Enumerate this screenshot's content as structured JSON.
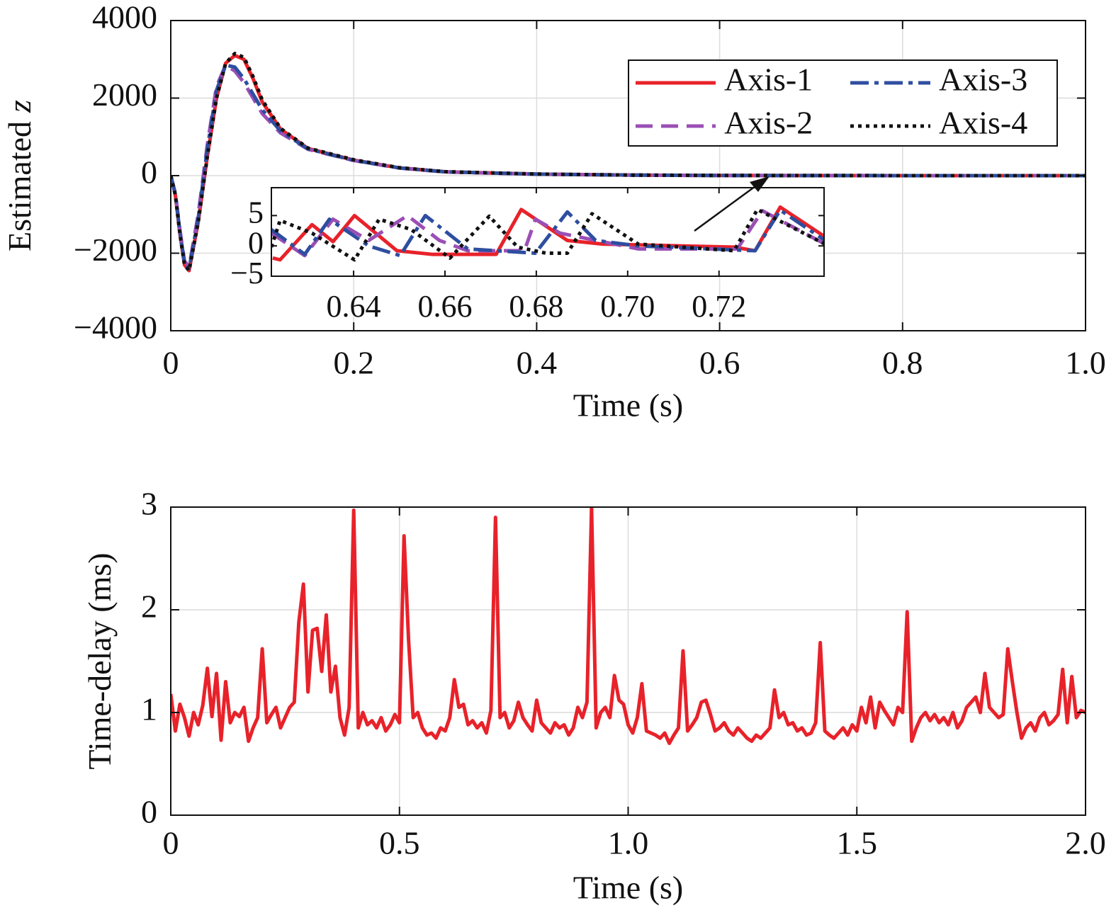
{
  "chart_data": [
    {
      "type": "line",
      "grid": true,
      "legend": "upper right",
      "legend_columns": 2,
      "ylabel": "Estimated",
      "ylabel_symbol": "z",
      "xlabel": "Time (s)",
      "xlim": [
        0,
        1
      ],
      "xticks": [
        0,
        0.2,
        0.4,
        0.6,
        0.8,
        {
          "value": 1,
          "label": "1.0"
        }
      ],
      "ylim": [
        -4000,
        4000
      ],
      "yticks": [
        {
          "value": -4000,
          "label": "−4000"
        },
        {
          "value": -2000,
          "label": "−2000"
        },
        0,
        2000,
        4000
      ],
      "x": [
        0,
        0.005,
        0.01,
        0.015,
        0.02,
        0.03,
        0.04,
        0.05,
        0.06,
        0.07,
        0.08,
        0.09,
        0.1,
        0.12,
        0.15,
        0.2,
        0.25,
        0.3,
        0.4,
        0.5,
        0.6,
        0.7,
        0.8,
        0.9,
        1.0
      ],
      "series": [
        {
          "name": "Axis-1",
          "color": "#e8222a",
          "dash": "solid",
          "values": [
            0,
            -500,
            -1500,
            -2300,
            -2450,
            -1200,
            500,
            2000,
            2900,
            3100,
            3000,
            2500,
            1900,
            1200,
            700,
            400,
            200,
            100,
            40,
            15,
            5,
            2,
            1,
            0.5,
            0.2
          ]
        },
        {
          "name": "Axis-2",
          "color": "#9b4fb5",
          "dash": "dashed",
          "values": [
            0,
            -450,
            -1400,
            -2200,
            -2350,
            -1000,
            800,
            2300,
            2850,
            2700,
            2400,
            2000,
            1600,
            1100,
            680,
            390,
            195,
            95,
            38,
            14,
            5,
            2,
            1,
            0.5,
            0.2
          ]
        },
        {
          "name": "Axis-3",
          "color": "#2e4ea0",
          "dash": "dashdot",
          "values": [
            0,
            -480,
            -1450,
            -2250,
            -2400,
            -1100,
            700,
            2200,
            2850,
            2800,
            2500,
            2100,
            1700,
            1150,
            690,
            395,
            198,
            98,
            39,
            15,
            5,
            2,
            1,
            0.5,
            0.2
          ]
        },
        {
          "name": "Axis-4",
          "color": "#111111",
          "dash": "dotted",
          "values": [
            0,
            -500,
            -1500,
            -2300,
            -2450,
            -1200,
            500,
            2000,
            2900,
            3150,
            3050,
            2550,
            1950,
            1220,
            710,
            410,
            205,
            102,
            41,
            15,
            5,
            2,
            1,
            0.5,
            0.2
          ]
        }
      ]
    },
    {
      "type": "line",
      "grid": false,
      "xlim": [
        0.622,
        0.743
      ],
      "xticks": [
        0.64,
        0.66,
        0.68,
        {
          "value": 0.7,
          "label": "0.70"
        },
        0.72
      ],
      "ylim": [
        -5,
        9.6
      ],
      "yticks": [
        {
          "value": -5,
          "label": "−5"
        },
        0,
        5
      ],
      "series": [
        {
          "color": "#e8222a",
          "dash": "solid",
          "x": [
            0.6223,
            0.6239,
            0.6309,
            0.6355,
            0.6402,
            0.6495,
            0.6573,
            0.6712,
            0.6767,
            0.6868,
            0.6945,
            0.7233,
            0.7279,
            0.7334,
            0.7432
          ],
          "values": [
            -2.0,
            -2.3,
            3.5,
            0.7,
            5.0,
            -0.8,
            -1.4,
            -1.4,
            6.0,
            0.9,
            0.3,
            -0.2,
            -0.8,
            6.4,
            1.5
          ]
        },
        {
          "color": "#9b4fb5",
          "dash": "dashed",
          "x": [
            0.622,
            0.6293,
            0.6355,
            0.6433,
            0.6518,
            0.6588,
            0.665,
            0.6774,
            0.6798,
            0.6852,
            0.7023,
            0.724,
            0.7295,
            0.7432
          ],
          "values": [
            2.1,
            -1.6,
            4.4,
            0.9,
            5.0,
            0.9,
            -0.8,
            -0.8,
            4.4,
            2.1,
            -0.5,
            -0.5,
            5.8,
            0.3
          ]
        },
        {
          "color": "#2e4ea0",
          "dash": "dashdot",
          "x": [
            0.622,
            0.6293,
            0.6347,
            0.6433,
            0.6502,
            0.6557,
            0.665,
            0.6798,
            0.6868,
            0.693,
            0.7023,
            0.7279,
            0.7334,
            0.7432
          ],
          "values": [
            2.7,
            -1.4,
            4.4,
            0,
            -1.6,
            5.0,
            -0.5,
            -1.2,
            5.6,
            0.9,
            0,
            -0.8,
            5.9,
            0.9
          ]
        },
        {
          "color": "#111111",
          "dash": "dotted",
          "x": [
            0.622,
            0.6239,
            0.6309,
            0.6402,
            0.6456,
            0.6526,
            0.6611,
            0.6697,
            0.6759,
            0.6821,
            0.6868,
            0.6922,
            0.7023,
            0.7233,
            0.7284,
            0.7432
          ],
          "values": [
            -0.2,
            4.2,
            2.1,
            -2.3,
            4.4,
            2.7,
            -2.0,
            4.9,
            -0.2,
            -1.2,
            -1.2,
            5.3,
            0.3,
            -0.8,
            6.0,
            0.3
          ]
        }
      ]
    },
    {
      "type": "line",
      "grid": true,
      "ylabel": "Time-delay (ms)",
      "xlabel": "Time (s)",
      "xlim": [
        0,
        2
      ],
      "xticks": [
        0,
        0.5,
        {
          "value": 1,
          "label": "1.0"
        },
        1.5,
        {
          "value": 2,
          "label": "2.0"
        }
      ],
      "ylim": [
        0,
        3
      ],
      "yticks": [
        0,
        1,
        2,
        3
      ],
      "x": [
        0,
        0.01,
        0.02,
        0.03,
        0.04,
        0.05,
        0.06,
        0.07,
        0.08,
        0.09,
        0.1,
        0.11,
        0.12,
        0.13,
        0.14,
        0.15,
        0.16,
        0.17,
        0.18,
        0.19,
        0.2,
        0.21,
        0.22,
        0.23,
        0.24,
        0.25,
        0.26,
        0.27,
        0.28,
        0.29,
        0.3,
        0.31,
        0.32,
        0.33,
        0.34,
        0.35,
        0.36,
        0.37,
        0.38,
        0.39,
        0.4,
        0.41,
        0.42,
        0.43,
        0.44,
        0.45,
        0.46,
        0.47,
        0.48,
        0.49,
        0.5,
        0.51,
        0.52,
        0.53,
        0.54,
        0.55,
        0.56,
        0.57,
        0.58,
        0.59,
        0.6,
        0.61,
        0.62,
        0.63,
        0.64,
        0.65,
        0.66,
        0.67,
        0.68,
        0.69,
        0.7,
        0.71,
        0.72,
        0.73,
        0.74,
        0.75,
        0.76,
        0.77,
        0.78,
        0.79,
        0.8,
        0.81,
        0.82,
        0.83,
        0.84,
        0.85,
        0.86,
        0.87,
        0.88,
        0.89,
        0.9,
        0.91,
        0.92,
        0.93,
        0.94,
        0.95,
        0.96,
        0.97,
        0.98,
        0.99,
        1,
        1.01,
        1.02,
        1.03,
        1.04,
        1.05,
        1.06,
        1.07,
        1.08,
        1.09,
        1.1,
        1.11,
        1.12,
        1.13,
        1.14,
        1.15,
        1.16,
        1.17,
        1.18,
        1.19,
        1.2,
        1.21,
        1.22,
        1.23,
        1.24,
        1.25,
        1.26,
        1.27,
        1.28,
        1.29,
        1.3,
        1.31,
        1.32,
        1.33,
        1.34,
        1.35,
        1.36,
        1.37,
        1.38,
        1.39,
        1.4,
        1.41,
        1.42,
        1.43,
        1.44,
        1.45,
        1.46,
        1.47,
        1.48,
        1.49,
        1.5,
        1.51,
        1.52,
        1.53,
        1.54,
        1.55,
        1.56,
        1.57,
        1.58,
        1.59,
        1.6,
        1.61,
        1.62,
        1.63,
        1.64,
        1.65,
        1.66,
        1.67,
        1.68,
        1.69,
        1.7,
        1.71,
        1.72,
        1.73,
        1.74,
        1.75,
        1.76,
        1.77,
        1.78,
        1.79,
        1.8,
        1.81,
        1.82,
        1.83,
        1.84,
        1.85,
        1.86,
        1.87,
        1.88,
        1.89,
        1.9,
        1.91,
        1.92,
        1.93,
        1.94,
        1.95,
        1.96,
        1.97,
        1.98,
        1.99,
        2
      ],
      "series": [
        {
          "color": "#e8222a",
          "dash": "solid",
          "values": [
            1.18,
            0.82,
            1.08,
            0.95,
            0.77,
            1.0,
            0.88,
            1.07,
            1.43,
            0.96,
            1.38,
            0.73,
            1.3,
            0.9,
            1.0,
            0.96,
            1.05,
            0.72,
            0.85,
            0.95,
            1.62,
            0.9,
            0.98,
            1.05,
            0.85,
            0.95,
            1.05,
            1.1,
            1.88,
            2.25,
            1.2,
            1.8,
            1.82,
            1.4,
            1.95,
            1.2,
            1.45,
            0.95,
            0.78,
            1.05,
            2.97,
            0.85,
            1.0,
            0.88,
            0.92,
            0.85,
            0.95,
            0.82,
            0.88,
            0.98,
            0.9,
            2.72,
            1.7,
            0.95,
            1.0,
            0.85,
            0.78,
            0.8,
            0.75,
            0.85,
            0.82,
            0.95,
            1.32,
            1.05,
            1.08,
            0.88,
            0.92,
            0.85,
            0.9,
            0.8,
            1.02,
            2.9,
            0.95,
            1.0,
            0.85,
            0.92,
            1.1,
            0.95,
            0.88,
            0.82,
            1.12,
            0.9,
            0.85,
            0.8,
            0.9,
            0.85,
            0.88,
            0.78,
            0.85,
            1.05,
            0.95,
            1.1,
            3.0,
            0.85,
            1.0,
            1.05,
            0.95,
            1.36,
            1.12,
            1.08,
            0.88,
            0.8,
            0.95,
            1.28,
            0.82,
            0.8,
            0.78,
            0.75,
            0.8,
            0.7,
            0.78,
            0.85,
            1.6,
            0.82,
            0.88,
            0.95,
            1.1,
            1.12,
            0.98,
            0.82,
            0.85,
            0.9,
            0.82,
            0.78,
            0.85,
            0.8,
            0.75,
            0.72,
            0.78,
            0.75,
            0.8,
            0.85,
            1.22,
            0.95,
            1.0,
            0.88,
            0.9,
            0.82,
            0.85,
            0.78,
            0.8,
            0.9,
            1.68,
            0.82,
            0.78,
            0.75,
            0.8,
            0.85,
            0.78,
            0.88,
            0.82,
            1.05,
            0.9,
            1.15,
            0.85,
            1.1,
            1.02,
            0.95,
            0.88,
            1.05,
            1.0,
            1.98,
            0.72,
            0.85,
            0.95,
            1.0,
            0.92,
            0.98,
            0.9,
            0.95,
            0.88,
            1.0,
            0.85,
            0.92,
            1.05,
            1.1,
            1.15,
            1.0,
            1.38,
            1.05,
            1.0,
            0.95,
            0.98,
            1.62,
            1.3,
            1.0,
            0.75,
            0.85,
            0.9,
            0.82,
            0.95,
            1.0,
            0.88,
            0.92,
            0.98,
            1.42,
            0.9,
            1.35,
            0.95,
            1.02,
            1.0
          ]
        }
      ]
    }
  ]
}
